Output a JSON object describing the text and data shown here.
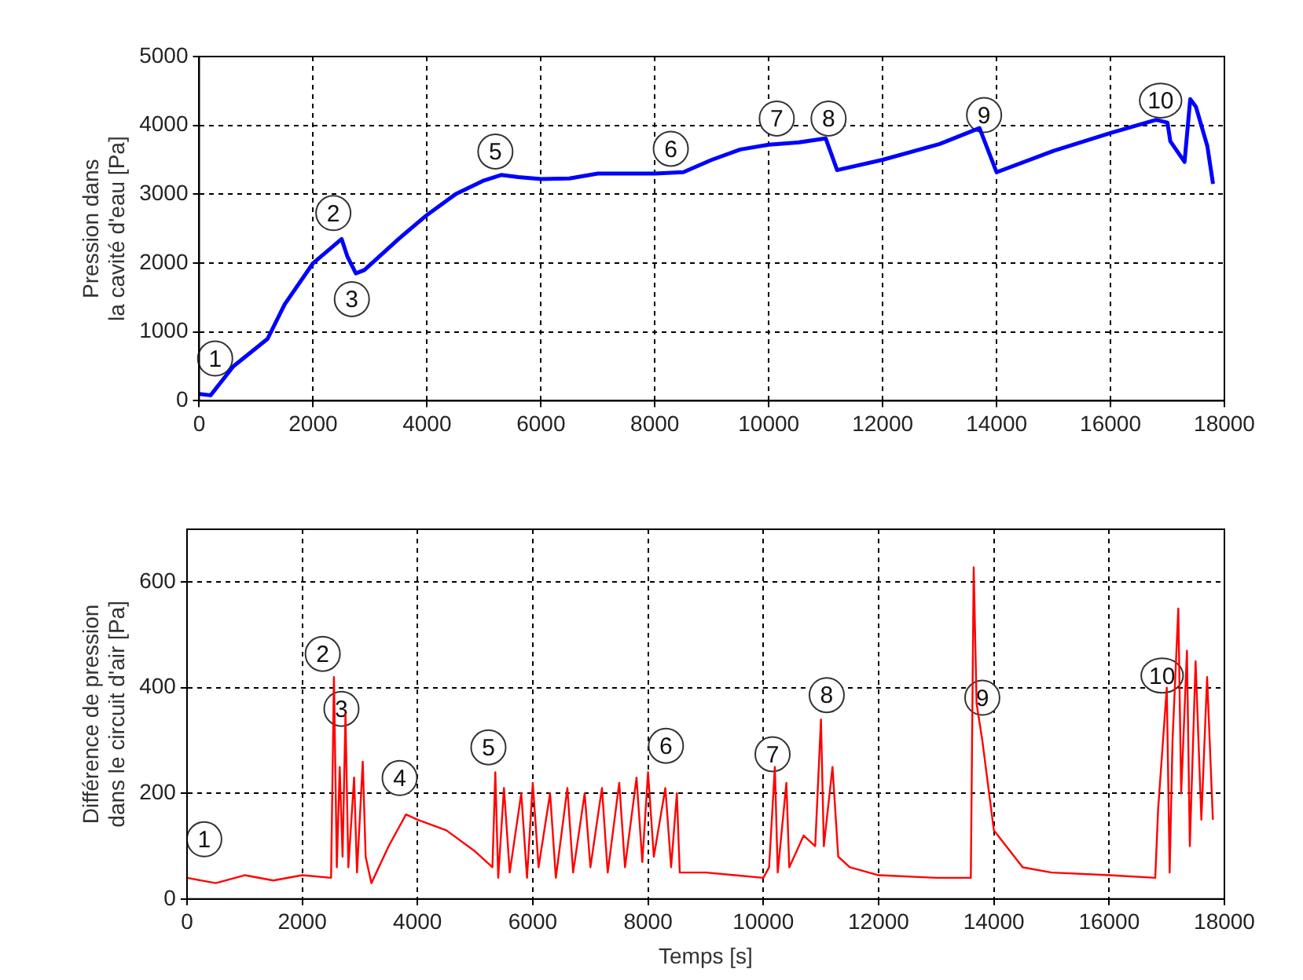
{
  "chart_data": [
    {
      "type": "line",
      "ylabel": "Pression dans\nla cavité d'eau [Pa]",
      "xlim": [
        0,
        18000
      ],
      "xticks": [
        0,
        2000,
        4000,
        6000,
        8000,
        10000,
        12000,
        14000,
        16000,
        18000
      ],
      "ylim": [
        0,
        5000
      ],
      "yticks": [
        0,
        1000,
        2000,
        3000,
        4000,
        5000
      ],
      "grid": true,
      "x": [
        0,
        200,
        600,
        1200,
        1500,
        2000,
        2500,
        2600,
        2750,
        2900,
        3500,
        4000,
        4500,
        5000,
        5300,
        5600,
        6000,
        6500,
        7000,
        8000,
        8500,
        9000,
        9500,
        10000,
        10500,
        11000,
        11200,
        12000,
        13000,
        13700,
        14000,
        15000,
        16000,
        16800,
        17000,
        17050,
        17300,
        17400,
        17500,
        17700,
        17800
      ],
      "series": [
        {
          "color": "#0000ff",
          "values": [
            100,
            80,
            500,
            900,
            1400,
            2000,
            2350,
            2100,
            1850,
            1900,
            2350,
            2700,
            3000,
            3200,
            3280,
            3250,
            3220,
            3230,
            3300,
            3300,
            3320,
            3500,
            3650,
            3720,
            3750,
            3810,
            3350,
            3500,
            3730,
            3960,
            3320,
            3630,
            3890,
            4080,
            4040,
            3770,
            3470,
            4380,
            4270,
            3700,
            3150
          ]
        }
      ],
      "annotations": [
        {
          "text": "1",
          "x": 280,
          "y": 614
        },
        {
          "text": "2",
          "x": 2355,
          "y": 2727
        },
        {
          "text": "3",
          "x": 2680,
          "y": 1477
        },
        {
          "text": "5",
          "x": 5200,
          "y": 3620
        },
        {
          "text": "6",
          "x": 8280,
          "y": 3660
        },
        {
          "text": "7",
          "x": 10140,
          "y": 4100
        },
        {
          "text": "8",
          "x": 11050,
          "y": 4100
        },
        {
          "text": "9",
          "x": 13780,
          "y": 4150
        },
        {
          "text": "10",
          "x": 16880,
          "y": 4360
        }
      ]
    },
    {
      "type": "line",
      "xlabel": "Temps [s]",
      "ylabel": "Différence de pression\ndans le circuit d'air [Pa]",
      "xlim": [
        0,
        18000
      ],
      "xticks": [
        0,
        2000,
        4000,
        6000,
        8000,
        10000,
        12000,
        14000,
        16000,
        18000
      ],
      "ylim": [
        0,
        700
      ],
      "yticks": [
        0,
        200,
        400,
        600
      ],
      "grid": true,
      "x": [
        0,
        500,
        1000,
        1500,
        2000,
        2500,
        2550,
        2600,
        2650,
        2700,
        2750,
        2800,
        2900,
        2950,
        3050,
        3100,
        3200,
        3500,
        3800,
        4000,
        4500,
        5000,
        5300,
        5350,
        5400,
        5500,
        5600,
        5800,
        5900,
        6000,
        6100,
        6300,
        6400,
        6600,
        6700,
        6900,
        7000,
        7200,
        7300,
        7500,
        7600,
        7800,
        7900,
        8000,
        8100,
        8300,
        8400,
        8500,
        8550,
        9000,
        9500,
        10000,
        10100,
        10200,
        10250,
        10400,
        10450,
        10700,
        10900,
        11000,
        11050,
        11200,
        11300,
        11500,
        12000,
        13000,
        13600,
        13650,
        13700,
        13800,
        14000,
        14500,
        15000,
        16000,
        16800,
        16850,
        17000,
        17050,
        17100,
        17200,
        17250,
        17350,
        17400,
        17500,
        17600,
        17700,
        17800
      ],
      "series": [
        {
          "color": "#ff0000",
          "values": [
            40,
            30,
            45,
            35,
            45,
            40,
            420,
            60,
            250,
            80,
            350,
            60,
            230,
            50,
            260,
            80,
            30,
            100,
            160,
            150,
            130,
            90,
            60,
            240,
            40,
            210,
            50,
            200,
            40,
            220,
            60,
            200,
            40,
            210,
            50,
            200,
            60,
            210,
            50,
            220,
            60,
            230,
            70,
            240,
            80,
            210,
            60,
            200,
            50,
            50,
            45,
            40,
            60,
            250,
            50,
            220,
            60,
            120,
            100,
            340,
            100,
            250,
            80,
            60,
            45,
            40,
            40,
            628,
            370,
            300,
            130,
            60,
            50,
            45,
            40,
            170,
            400,
            50,
            300,
            550,
            200,
            470,
            100,
            450,
            150,
            420,
            150
          ]
        }
      ],
      "annotations": [
        {
          "text": "1",
          "x": 300,
          "y": 113
        },
        {
          "text": "2",
          "x": 2355,
          "y": 464
        },
        {
          "text": "3",
          "x": 2680,
          "y": 360
        },
        {
          "text": "4",
          "x": 3690,
          "y": 229
        },
        {
          "text": "5",
          "x": 5230,
          "y": 287
        },
        {
          "text": "6",
          "x": 8310,
          "y": 290
        },
        {
          "text": "7",
          "x": 10160,
          "y": 274
        },
        {
          "text": "8",
          "x": 11100,
          "y": 386
        },
        {
          "text": "9",
          "x": 13800,
          "y": 381
        },
        {
          "text": "10",
          "x": 16920,
          "y": 423
        }
      ]
    }
  ]
}
